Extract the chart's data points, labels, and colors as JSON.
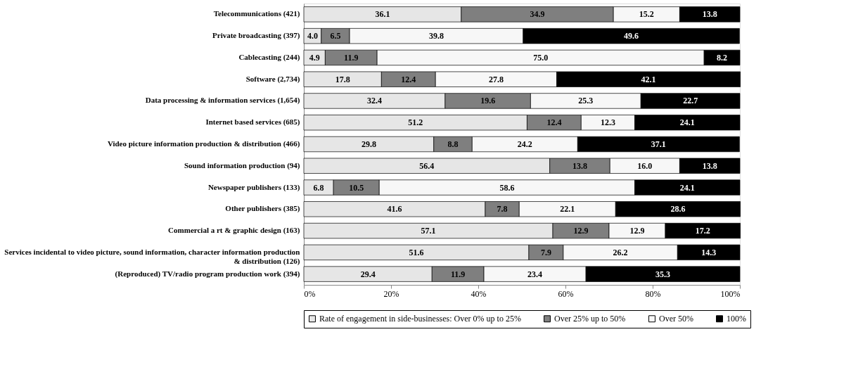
{
  "chart_data": {
    "type": "bar",
    "orientation": "horizontal",
    "stacked": true,
    "grid": false,
    "legend": "bottom",
    "categories": [
      "Telecommunications (421)",
      "Private broadcasting (397)",
      "Cablecasting (244)",
      "Software (2,734)",
      "Data processing & information services (1,654)",
      "Internet based services (685)",
      "Video picture information production & distribution (466)",
      "Sound information production (94)",
      "Newspaper publishers (133)",
      "Other publishers (385)",
      "Commercial a rt & graphic design (163)",
      "Services incidental to video picture, sound information, character information production & distribution (126)",
      "(Reproduced) TV/radio program production work (394)"
    ],
    "xlim": [
      0,
      100
    ],
    "xticks": [
      {
        "value": 0,
        "label": "0%"
      },
      {
        "value": 20,
        "label": "20%"
      },
      {
        "value": 40,
        "label": "40%"
      },
      {
        "value": 60,
        "label": "60%"
      },
      {
        "value": 80,
        "label": "80%"
      },
      {
        "value": 100,
        "label": "100%"
      }
    ],
    "series": [
      {
        "name": "Rate of engagement in side-businesses: Over 0% up to 25%",
        "color": "#e6e6e6",
        "values": [
          36.1,
          4.0,
          4.9,
          17.8,
          32.4,
          51.2,
          29.8,
          56.4,
          6.8,
          41.6,
          57.1,
          51.6,
          29.4
        ],
        "value_labels": [
          "36.1",
          "4.0",
          "4.9",
          "17.8",
          "32.4",
          "51.2",
          "29.8",
          "56.4",
          "6.8",
          "41.6",
          "57.1",
          "51.6",
          "29.4"
        ]
      },
      {
        "name": "Over 25% up to 50%",
        "color": "#7f7f7f",
        "values": [
          34.9,
          6.5,
          11.9,
          12.4,
          19.6,
          12.4,
          8.8,
          13.8,
          10.5,
          7.8,
          12.9,
          7.9,
          11.9
        ],
        "value_labels": [
          "34.9",
          "6.5",
          "11.9",
          "12.4",
          "19.6",
          "12.4",
          "8.8",
          "13.8",
          "10.5",
          "7.8",
          "12.9",
          "7.9",
          "11.9"
        ]
      },
      {
        "name": "Over 50%",
        "color": "#f7f7f7",
        "values": [
          15.2,
          39.8,
          75.0,
          27.8,
          25.3,
          12.3,
          24.2,
          16.0,
          58.6,
          22.1,
          12.9,
          26.2,
          23.4
        ],
        "value_labels": [
          "15.2",
          "39.8",
          "75.0",
          "27.8",
          "25.3",
          "12.3",
          "24.2",
          "16.0",
          "58.6",
          "22.1",
          "12.9",
          "26.2",
          "23.4"
        ]
      },
      {
        "name": "100%",
        "color": "#000000",
        "values": [
          13.8,
          49.6,
          8.2,
          42.1,
          22.7,
          24.1,
          37.1,
          13.8,
          24.1,
          28.6,
          17.2,
          14.3,
          35.3
        ],
        "value_labels": [
          "13.8",
          "49.6",
          "8.2",
          "42.1",
          "22.7",
          "24.1",
          "37.1",
          "13.8",
          "24.1",
          "28.6",
          "17.2",
          "14.3",
          "35.3"
        ]
      }
    ]
  }
}
